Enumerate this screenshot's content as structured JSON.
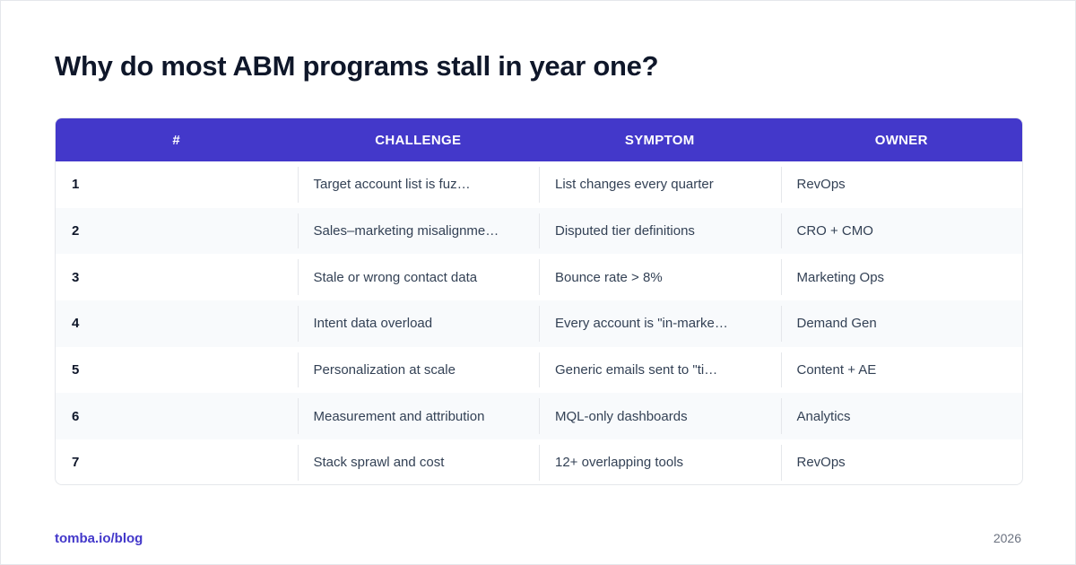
{
  "title": "Why do most ABM programs stall in year one?",
  "table": {
    "headers": [
      "#",
      "CHALLENGE",
      "SYMPTOM",
      "OWNER"
    ],
    "rows": [
      {
        "num": "1",
        "challenge": "Target account list is fuz…",
        "symptom": "List changes every quarter",
        "owner": "RevOps"
      },
      {
        "num": "2",
        "challenge": "Sales–marketing misalignme…",
        "symptom": "Disputed tier definitions",
        "owner": "CRO + CMO"
      },
      {
        "num": "3",
        "challenge": "Stale or wrong contact data",
        "symptom": "Bounce rate > 8%",
        "owner": "Marketing Ops"
      },
      {
        "num": "4",
        "challenge": "Intent data overload",
        "symptom": "Every account is \"in-marke…",
        "owner": "Demand Gen"
      },
      {
        "num": "5",
        "challenge": "Personalization at scale",
        "symptom": "Generic emails sent to \"ti…",
        "owner": "Content + AE"
      },
      {
        "num": "6",
        "challenge": "Measurement and attribution",
        "symptom": "MQL-only dashboards",
        "owner": "Analytics"
      },
      {
        "num": "7",
        "challenge": "Stack sprawl and cost",
        "symptom": "12+ overlapping tools",
        "owner": "RevOps"
      }
    ]
  },
  "footer": {
    "link": "tomba.io/blog",
    "year": "2026"
  },
  "colors": {
    "header_bg": "#4338ca",
    "accent": "#4338ca",
    "title": "#0f172a",
    "alt_row": "#f8fafc"
  }
}
